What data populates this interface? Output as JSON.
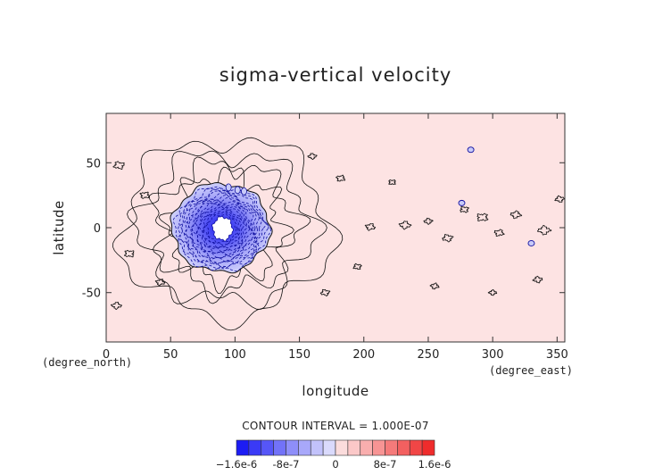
{
  "chart_data": {
    "type": "contour",
    "title": "sigma-vertical velocity",
    "xlabel": "longitude",
    "ylabel": "latitude",
    "x_unit": "(degree_east)",
    "y_unit": "(degree_north)",
    "xlim": [
      0,
      356
    ],
    "ylim": [
      -88,
      88
    ],
    "x_ticks": [
      0,
      50,
      100,
      150,
      200,
      250,
      300,
      350
    ],
    "y_ticks": [
      -50,
      0,
      50
    ],
    "grid": false,
    "contour_interval_label": "CONTOUR INTERVAL = 1.000E-07",
    "colorbar": {
      "levels": [
        -1.6e-06,
        -1.4e-06,
        -1.2e-06,
        -1e-06,
        -8e-07,
        -6e-07,
        -4e-07,
        -2e-07,
        0,
        2e-07,
        4e-07,
        6e-07,
        8e-07,
        1e-06,
        1.2e-06,
        1.4e-06,
        1.6e-06
      ],
      "colors": [
        "#1c1cf4",
        "#3a3af6",
        "#5656f7",
        "#7272f8",
        "#8e8ef9",
        "#a8a8fa",
        "#c2c2fb",
        "#dadafc",
        "#fbdcdc",
        "#fbc8c8",
        "#f9aeae",
        "#f79494",
        "#f57a7a",
        "#f36060",
        "#f14646",
        "#ef2c2c"
      ],
      "tick_labels": [
        {
          "value": -1.6e-06,
          "label": "−1.6e-6"
        },
        {
          "value": -8e-07,
          "label": "-8e-7"
        },
        {
          "value": 0,
          "label": "0"
        },
        {
          "value": 8e-07,
          "label": "8e-7"
        },
        {
          "value": 1.6e-06,
          "label": "1.6e-6"
        }
      ]
    },
    "background_level": 1e-07,
    "features": [
      {
        "kind": "descent_vortex",
        "center": [
          89,
          0
        ],
        "radius_lon": 38,
        "radius_lat": 34,
        "min_value": -1.6e-06
      },
      {
        "kind": "small_negative_cell",
        "center": [
          283,
          60
        ]
      },
      {
        "kind": "small_negative_cell",
        "center": [
          330,
          -12
        ]
      },
      {
        "kind": "small_negative_cell",
        "center": [
          276,
          19
        ]
      }
    ],
    "colors": {
      "background": "#fde3e3",
      "zero_contour": "#111111",
      "negative_contour": "#1010a0"
    }
  }
}
